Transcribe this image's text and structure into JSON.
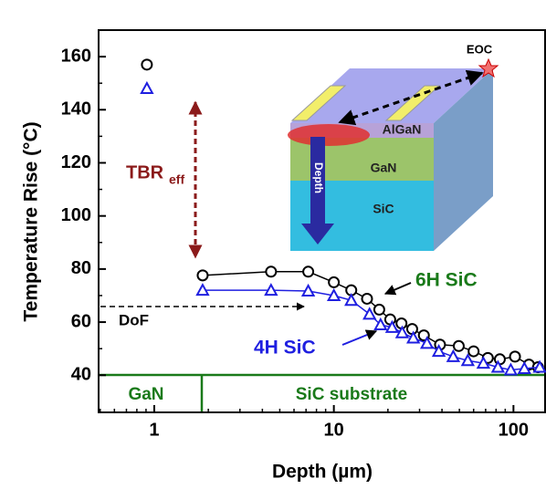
{
  "chart_data": {
    "type": "scatter",
    "x_label": "Depth (µm)",
    "y_label": "Temperature Rise (°C)",
    "xlim": [
      0.49,
      150
    ],
    "xticks": [
      1,
      10,
      100
    ],
    "xscale": "log",
    "ylim": [
      26,
      170
    ],
    "yticks": [
      40,
      60,
      80,
      100,
      120,
      140,
      160
    ],
    "series": [
      {
        "name": "6H SiC",
        "color": "#000000",
        "marker": "circle",
        "line": true,
        "x": [
          1.86,
          4.47,
          7.2,
          10,
          12.5,
          15.3,
          17.9,
          20.6,
          23.8,
          27.3,
          31.7,
          39,
          49.6,
          60,
          72,
          84,
          102,
          122,
          137
        ],
        "values": [
          77.6,
          79,
          79,
          75,
          72,
          68.8,
          64.7,
          61,
          59.5,
          57.4,
          55,
          51.5,
          51,
          49,
          46.5,
          46,
          47,
          44,
          43
        ]
      },
      {
        "name": "4H SiC",
        "color": "#1f1fe0",
        "marker": "triangle",
        "line": true,
        "x": [
          1.86,
          4.47,
          7.2,
          10,
          12.5,
          15.8,
          18.2,
          21.1,
          24,
          27.7,
          33,
          38.4,
          46.2,
          55.7,
          68,
          82,
          96.6,
          115,
          140
        ],
        "values": [
          72,
          72,
          71.7,
          70,
          68.2,
          63,
          59,
          58,
          56,
          54,
          52,
          49,
          47,
          45.5,
          44.5,
          43,
          42,
          42.5,
          43
        ]
      },
      {
        "color": "#000000",
        "marker": "circle",
        "line": false,
        "x": [
          0.91
        ],
        "values": [
          157
        ]
      },
      {
        "color": "#1f1fe0",
        "marker": "triangle",
        "line": false,
        "x": [
          0.91
        ],
        "values": [
          148
        ]
      }
    ],
    "annotations": {
      "tbr": "TBR",
      "tbr_sub": "eff",
      "dof": "DoF",
      "region_gan": "GaN",
      "region_sic": "SiC substrate",
      "label_6h": "6H SiC",
      "label_4h": "4H SiC"
    },
    "inset": {
      "eoc": "EOC",
      "algan": "AlGaN",
      "gan": "GaN",
      "sic": "SiC",
      "depth": "Depth"
    }
  }
}
